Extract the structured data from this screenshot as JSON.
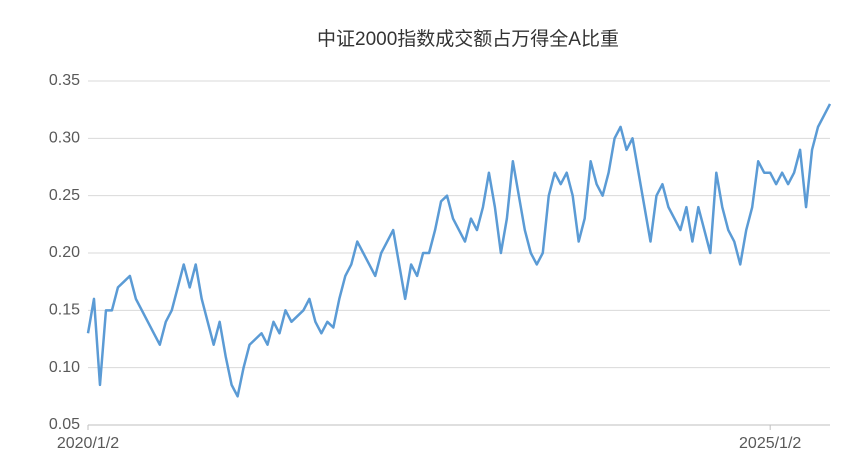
{
  "chart_data": {
    "type": "line",
    "title": "中证2000指数成交额占万得全A比重",
    "categories": [
      "2020/1/2",
      null,
      null,
      null,
      null,
      null,
      null,
      null,
      null,
      null,
      null,
      null,
      null,
      null,
      null,
      null,
      null,
      null,
      null,
      null,
      null,
      null,
      null,
      null,
      null,
      null,
      null,
      null,
      null,
      null,
      null,
      null,
      null,
      null,
      null,
      null,
      null,
      null,
      null,
      null,
      null,
      null,
      null,
      null,
      null,
      null,
      null,
      null,
      null,
      null,
      null,
      null,
      null,
      null,
      null,
      null,
      null,
      null,
      null,
      null,
      null,
      null,
      null,
      null,
      null,
      null,
      null,
      null,
      null,
      null,
      null,
      null,
      null,
      null,
      null,
      null,
      null,
      null,
      null,
      null,
      null,
      null,
      null,
      null,
      null,
      null,
      null,
      null,
      null,
      null,
      null,
      null,
      null,
      null,
      null,
      null,
      null,
      null,
      null,
      null,
      null,
      null,
      null,
      null,
      null,
      null,
      null,
      null,
      null,
      null,
      null,
      null,
      null,
      null,
      "2025/1/2",
      null,
      null,
      null,
      null,
      null,
      null,
      null,
      null,
      null,
      null
    ],
    "series": [
      {
        "name": "中证2000指数成交额占万得全A比重",
        "color": "#5b9bd5",
        "values": [
          0.13,
          0.16,
          0.085,
          0.15,
          0.15,
          0.17,
          0.175,
          0.18,
          0.16,
          0.15,
          0.14,
          0.13,
          0.12,
          0.14,
          0.15,
          0.17,
          0.19,
          0.17,
          0.19,
          0.16,
          0.14,
          0.12,
          0.14,
          0.11,
          0.085,
          0.075,
          0.1,
          0.12,
          0.125,
          0.13,
          0.12,
          0.14,
          0.13,
          0.15,
          0.14,
          0.145,
          0.15,
          0.16,
          0.14,
          0.13,
          0.14,
          0.135,
          0.16,
          0.18,
          0.19,
          0.21,
          0.2,
          0.19,
          0.18,
          0.2,
          0.21,
          0.22,
          0.19,
          0.16,
          0.19,
          0.18,
          0.2,
          0.2,
          0.22,
          0.245,
          0.25,
          0.23,
          0.22,
          0.21,
          0.23,
          0.22,
          0.24,
          0.27,
          0.24,
          0.2,
          0.23,
          0.28,
          0.25,
          0.22,
          0.2,
          0.19,
          0.2,
          0.25,
          0.27,
          0.26,
          0.27,
          0.25,
          0.21,
          0.23,
          0.28,
          0.26,
          0.25,
          0.27,
          0.3,
          0.31,
          0.29,
          0.3,
          0.27,
          0.24,
          0.21,
          0.25,
          0.26,
          0.24,
          0.23,
          0.22,
          0.24,
          0.21,
          0.24,
          0.22,
          0.2,
          0.27,
          0.24,
          0.22,
          0.21,
          0.19,
          0.22,
          0.24,
          0.28,
          0.27,
          0.27,
          0.26,
          0.27,
          0.26,
          0.27,
          0.29,
          0.24,
          0.29,
          0.31,
          0.32,
          0.33
        ]
      }
    ],
    "ylim": [
      0.05,
      0.35
    ],
    "yticks": [
      0.05,
      {
        "value": 0.1,
        "label": "0.10"
      },
      0.15,
      {
        "value": 0.2,
        "label": "0.20"
      },
      0.25,
      {
        "value": 0.3,
        "label": "0.30"
      },
      0.35
    ],
    "grid": true
  }
}
